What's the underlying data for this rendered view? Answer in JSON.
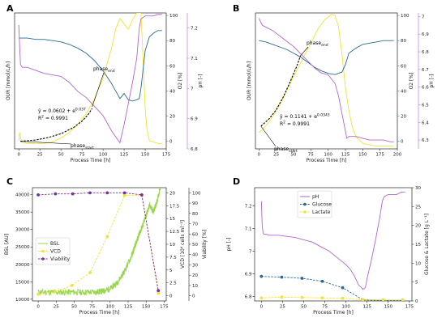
{
  "colors": {
    "our": "#F2E336",
    "o2": "#2B6A8E",
    "ph": "#B266CC",
    "fit": "#000000",
    "bsl": "#9AD64C",
    "vcd": "#F2E336",
    "viab": "#7A2FA0",
    "glc": "#2B6A8E",
    "lac": "#F2E336"
  },
  "chart_data": [
    {
      "type": "line",
      "panel_label": "A",
      "xlabel": "Process Time [h]",
      "xlim": [
        -5,
        175
      ],
      "xticks": [
        0,
        25,
        50,
        75,
        100,
        125,
        150,
        175
      ],
      "ylabel": "OUR [mmol/L/h]",
      "y_tick_labels_visible": false,
      "y2label": "O2 [%]",
      "y2lim": [
        -6,
        102
      ],
      "y2ticks": [
        0,
        20,
        40,
        60,
        80,
        100
      ],
      "y3label": "pH [-]",
      "y3lim": [
        6.8,
        7.25
      ],
      "y3ticks": [
        6.8,
        6.9,
        7.0,
        7.1,
        7.2
      ],
      "series": [
        {
          "name": "OUR",
          "axis": "y1",
          "ylim": [
            0,
            1
          ],
          "x": [
            0,
            1,
            3,
            10,
            20,
            30,
            40,
            50,
            60,
            70,
            80,
            90,
            100,
            110,
            115,
            120,
            125,
            130,
            135,
            140,
            145,
            148,
            150,
            152,
            155,
            160,
            165,
            170
          ],
          "values": [
            0.06,
            0.12,
            0.05,
            0.04,
            0.04,
            0.04,
            0.05,
            0.08,
            0.12,
            0.18,
            0.26,
            0.37,
            0.52,
            0.74,
            0.88,
            0.96,
            0.92,
            0.88,
            0.95,
            1.0,
            1.0,
            0.6,
            0.3,
            0.15,
            0.06,
            0.05,
            0.04,
            0.04
          ]
        },
        {
          "name": "O2",
          "axis": "y2",
          "x": [
            0,
            10,
            20,
            30,
            40,
            50,
            60,
            70,
            80,
            90,
            100,
            110,
            115,
            120,
            125,
            130,
            135,
            140,
            143,
            145,
            150,
            155,
            160,
            165,
            170
          ],
          "values": [
            82,
            82,
            81,
            81,
            80,
            79,
            77,
            74,
            70,
            64,
            56,
            46,
            40,
            34,
            38,
            33,
            32,
            33,
            34,
            42,
            72,
            83,
            86,
            88,
            88
          ]
        },
        {
          "name": "pH",
          "axis": "y3",
          "x": [
            0,
            1,
            2,
            4,
            10,
            20,
            30,
            40,
            50,
            60,
            70,
            80,
            90,
            100,
            110,
            115,
            120,
            125,
            130,
            135,
            140,
            143,
            145,
            150,
            155,
            160,
            165,
            170
          ],
          "values": [
            7.21,
            7.14,
            7.08,
            7.07,
            7.07,
            7.06,
            7.05,
            7.045,
            7.04,
            7.02,
            6.99,
            6.97,
            6.94,
            6.91,
            6.86,
            6.84,
            6.82,
            6.88,
            6.95,
            7.02,
            7.1,
            7.2,
            7.23,
            7.24,
            7.24,
            7.24,
            7.245,
            7.245
          ]
        },
        {
          "name": "fit",
          "axis": "y2",
          "dashed": true,
          "x": [
            2,
            20,
            35,
            50,
            65,
            75,
            82,
            87
          ],
          "values": [
            0,
            1,
            3,
            6,
            11,
            16,
            21,
            26
          ]
        }
      ],
      "annotations": [
        {
          "id": "phase_end",
          "text": "phase",
          "sub": "end",
          "at": [
            95,
            48
          ]
        },
        {
          "id": "phase_start",
          "text": "phase",
          "sub": "start",
          "at": [
            33,
            -3
          ]
        },
        {
          "id": "eq1",
          "text": "ŷ = 0.0602 + e",
          "sup": "0.037"
        },
        {
          "id": "eq2",
          "text": "R",
          "sup": "2",
          "tail": " = 0.9991"
        }
      ]
    },
    {
      "type": "line",
      "panel_label": "B",
      "xlabel": "Process Time [h]",
      "xlim": [
        -5,
        200
      ],
      "xticks": [
        0,
        25,
        50,
        75,
        100,
        125,
        150,
        175,
        200
      ],
      "ylabel": "OUR [mmol/L/h]",
      "y_tick_labels_visible": false,
      "y2label": "O2 [%]",
      "y2lim": [
        -6,
        102
      ],
      "y2ticks": [
        0,
        20,
        40,
        60,
        80,
        100
      ],
      "y3label": "pH [-]",
      "y3lim": [
        6.25,
        7.02
      ],
      "y3ticks": [
        6.3,
        6.4,
        6.5,
        6.6,
        6.7,
        6.8,
        6.9,
        7.0
      ],
      "series": [
        {
          "name": "OUR",
          "axis": "y1",
          "ylim": [
            0,
            1
          ],
          "x": [
            0,
            5,
            15,
            25,
            35,
            45,
            55,
            65,
            75,
            85,
            95,
            100,
            105,
            110,
            115,
            120,
            125,
            130,
            135,
            140,
            150,
            160,
            170,
            180,
            190,
            195
          ],
          "values": [
            0.12,
            0.14,
            0.2,
            0.28,
            0.37,
            0.48,
            0.58,
            0.68,
            0.78,
            0.88,
            0.95,
            0.97,
            0.99,
            0.98,
            0.9,
            0.7,
            0.45,
            0.28,
            0.16,
            0.09,
            0.04,
            0.03,
            0.02,
            0.02,
            0.02,
            0.02
          ]
        },
        {
          "name": "O2",
          "axis": "y2",
          "x": [
            0,
            10,
            20,
            30,
            40,
            50,
            60,
            70,
            80,
            90,
            100,
            110,
            120,
            125,
            130,
            140,
            150,
            160,
            170,
            180,
            190,
            195
          ],
          "values": [
            80,
            79,
            77,
            75,
            73,
            70,
            67,
            63,
            59,
            56,
            54,
            53,
            55,
            61,
            70,
            74,
            77,
            78,
            79,
            80,
            80,
            80
          ]
        },
        {
          "name": "pH",
          "axis": "y3",
          "x": [
            0,
            5,
            10,
            20,
            30,
            40,
            50,
            60,
            70,
            80,
            90,
            100,
            110,
            115,
            120,
            125,
            127,
            130,
            140,
            150,
            160,
            170,
            180,
            190,
            195
          ],
          "values": [
            6.99,
            6.95,
            6.94,
            6.92,
            6.89,
            6.86,
            6.83,
            6.79,
            6.75,
            6.71,
            6.68,
            6.67,
            6.62,
            6.55,
            6.45,
            6.35,
            6.31,
            6.32,
            6.32,
            6.31,
            6.3,
            6.3,
            6.3,
            6.29,
            6.29
          ]
        },
        {
          "name": "fit",
          "axis": "y2",
          "dashed": true,
          "x": [
            3,
            15,
            25,
            35,
            45,
            55,
            60
          ],
          "values": [
            12,
            18,
            25,
            35,
            47,
            60,
            68
          ]
        }
      ],
      "annotations": [
        {
          "id": "phase_end",
          "text": "phase",
          "sub": "end",
          "at": [
            60,
            68
          ]
        },
        {
          "id": "phase_start",
          "text": "phase",
          "sub": "start",
          "at": [
            3,
            12
          ]
        },
        {
          "id": "eq1",
          "text": "ŷ = 0.1141 + e",
          "sup": "0.0343"
        },
        {
          "id": "eq2",
          "text": "R",
          "sup": "2",
          "tail": " = 0.9991"
        }
      ]
    },
    {
      "type": "line",
      "panel_label": "C",
      "xlabel": "Process Time [h]",
      "xlim": [
        -8,
        178
      ],
      "xticks": [
        0,
        25,
        50,
        75,
        100,
        125,
        150,
        175
      ],
      "ylabel": "BSL [AU]",
      "ylim": [
        9500,
        42000
      ],
      "yticks": [
        10000,
        15000,
        20000,
        25000,
        30000,
        35000,
        40000
      ],
      "y2label": "VCD [10⁶ cells ml⁻¹]",
      "y2lim": [
        -1,
        21
      ],
      "y2ticks": [
        0.0,
        2.5,
        5.0,
        7.5,
        10.0,
        12.5,
        15.0,
        17.5,
        20.0
      ],
      "y3label": "Viability [%]",
      "y3lim": [
        -5,
        105
      ],
      "y3ticks": [
        0,
        10,
        20,
        30,
        40,
        50,
        60,
        70,
        80,
        90,
        100
      ],
      "legend": {
        "position": "center-left",
        "entries": [
          "BSL",
          "VCD",
          "Viability"
        ]
      },
      "series": [
        {
          "name": "BSL",
          "axis": "y1",
          "noisy": true,
          "x": [
            0,
            20,
            40,
            60,
            80,
            90,
            100,
            110,
            120,
            130,
            135,
            140,
            145,
            150,
            155,
            160,
            165,
            170
          ],
          "values": [
            12000,
            12000,
            12000,
            12000,
            12000,
            12300,
            13000,
            14800,
            18000,
            22500,
            25500,
            28500,
            31000,
            34000,
            37000,
            35000,
            38000,
            42000
          ]
        },
        {
          "name": "VCD",
          "axis": "y2",
          "dashed": true,
          "markers": true,
          "x": [
            0,
            24,
            47,
            72,
            96,
            120,
            144,
            167
          ],
          "values": [
            0.3,
            0.8,
            2.0,
            4.5,
            11.5,
            19.5,
            19.5,
            0.5
          ]
        },
        {
          "name": "Viability",
          "axis": "y3",
          "dashed": true,
          "markers": true,
          "x": [
            0,
            24,
            48,
            72,
            96,
            120,
            144,
            167
          ],
          "values": [
            98,
            99,
            99,
            100,
            100,
            100,
            98,
            5
          ]
        }
      ]
    },
    {
      "type": "line",
      "panel_label": "D",
      "xlabel": "Process Time [h]",
      "xlim": [
        -8,
        178
      ],
      "xticks": [
        0,
        25,
        50,
        75,
        100,
        125,
        150,
        175
      ],
      "ylabel": "pH [-]",
      "ylim": [
        6.78,
        7.28
      ],
      "yticks": [
        6.8,
        6.9,
        7.0,
        7.1,
        7.2
      ],
      "y2label": "Glucose & Lactate [g L⁻¹]",
      "y2lim": [
        0,
        30
      ],
      "y2ticks": [
        0,
        5,
        10,
        15,
        20,
        25,
        30
      ],
      "legend": {
        "position": "top-center",
        "entries": [
          "pH",
          "Glucose",
          "Lactate"
        ]
      },
      "series": [
        {
          "name": "pH",
          "axis": "y1",
          "x": [
            0,
            1,
            2,
            3,
            5,
            10,
            20,
            30,
            40,
            50,
            60,
            70,
            80,
            90,
            100,
            105,
            110,
            115,
            118,
            120,
            123,
            125,
            130,
            135,
            140,
            143,
            145,
            150,
            155,
            160,
            165,
            170
          ],
          "values": [
            7.22,
            7.11,
            7.08,
            7.075,
            7.075,
            7.07,
            7.07,
            7.065,
            7.06,
            7.05,
            7.04,
            7.02,
            7.0,
            6.97,
            6.94,
            6.92,
            6.89,
            6.85,
            6.84,
            6.83,
            6.84,
            6.88,
            6.96,
            7.05,
            7.15,
            7.22,
            7.24,
            7.25,
            7.25,
            7.25,
            7.26,
            7.26
          ]
        },
        {
          "name": "Glucose",
          "axis": "y2",
          "dashed": true,
          "markers": true,
          "x": [
            0,
            24,
            48,
            72,
            96,
            120,
            144,
            167
          ],
          "values": [
            6.5,
            6.3,
            6.0,
            5.2,
            3.5,
            0.3,
            0.1,
            0.1
          ]
        },
        {
          "name": "Lactate",
          "axis": "y2",
          "dashed": true,
          "markers": true,
          "x": [
            0,
            24,
            48,
            72,
            96,
            120,
            144,
            167
          ],
          "values": [
            0.8,
            1.0,
            0.9,
            0.8,
            0.7,
            0.3,
            0.3,
            0.3
          ]
        }
      ]
    }
  ]
}
